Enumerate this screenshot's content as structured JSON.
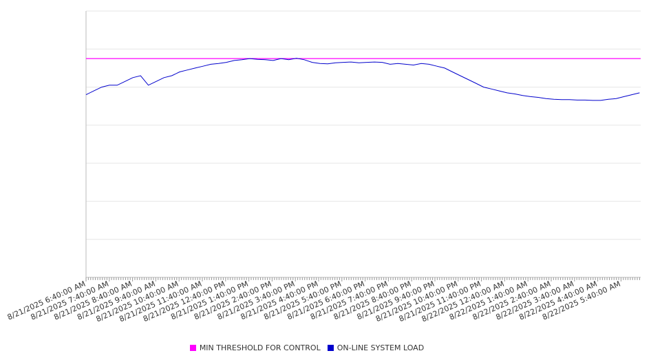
{
  "chart_data": {
    "type": "line",
    "title": "",
    "xlabel": "",
    "ylabel": "",
    "x_tick_labels": [
      "8/21/2025 6:40:00 AM",
      "8/21/2025 7:40:00 AM",
      "8/21/2025 8:40:00 AM",
      "8/21/2025 9:40:00 AM",
      "8/21/2025 10:40:00 AM",
      "8/21/2025 11:40:00 AM",
      "8/21/2025 12:40:00 PM",
      "8/21/2025 1:40:00 PM",
      "8/21/2025 2:40:00 PM",
      "8/21/2025 3:40:00 PM",
      "8/21/2025 4:40:00 PM",
      "8/21/2025 5:40:00 PM",
      "8/21/2025 6:40:00 PM",
      "8/21/2025 7:40:00 PM",
      "8/21/2025 8:40:00 PM",
      "8/21/2025 9:40:00 PM",
      "8/21/2025 10:40:00 PM",
      "8/21/2025 11:40:00 PM",
      "8/22/2025 12:40:00 AM",
      "8/22/2025 1:40:00 AM",
      "8/22/2025 2:40:00 AM",
      "8/22/2025 3:40:00 AM",
      "8/22/2025 4:40:00 AM",
      "8/22/2025 5:40:00 AM"
    ],
    "y_gridlines": 7,
    "grid": true,
    "legend_position": "bottom-center",
    "series": [
      {
        "name": "MIN THRESHOLD FOR CONTROL",
        "color": "#ff00ff",
        "values": [
          5.75,
          5.75
        ]
      },
      {
        "name": "ON-LINE SYSTEM LOAD",
        "color": "#0000cc",
        "values": [
          4.8,
          4.9,
          5.0,
          5.05,
          5.05,
          5.15,
          5.25,
          5.3,
          5.05,
          5.15,
          5.25,
          5.3,
          5.4,
          5.45,
          5.5,
          5.55,
          5.6,
          5.62,
          5.65,
          5.7,
          5.72,
          5.75,
          5.73,
          5.72,
          5.7,
          5.75,
          5.72,
          5.76,
          5.72,
          5.65,
          5.62,
          5.61,
          5.64,
          5.65,
          5.66,
          5.64,
          5.65,
          5.66,
          5.65,
          5.6,
          5.62,
          5.6,
          5.58,
          5.62,
          5.6,
          5.55,
          5.5,
          5.4,
          5.3,
          5.2,
          5.1,
          5.0,
          4.95,
          4.9,
          4.85,
          4.82,
          4.78,
          4.75,
          4.73,
          4.7,
          4.68,
          4.67,
          4.67,
          4.66,
          4.66,
          4.65,
          4.65,
          4.68,
          4.7,
          4.75,
          4.8,
          4.85
        ],
        "x_start_index": 0,
        "x_end_index": 23.8
      }
    ],
    "ylim": [
      0,
      7
    ]
  },
  "legend": {
    "items": [
      {
        "label": "MIN THRESHOLD FOR CONTROL",
        "color": "#ff00ff"
      },
      {
        "label": "ON-LINE SYSTEM LOAD",
        "color": "#0000cc"
      }
    ]
  }
}
